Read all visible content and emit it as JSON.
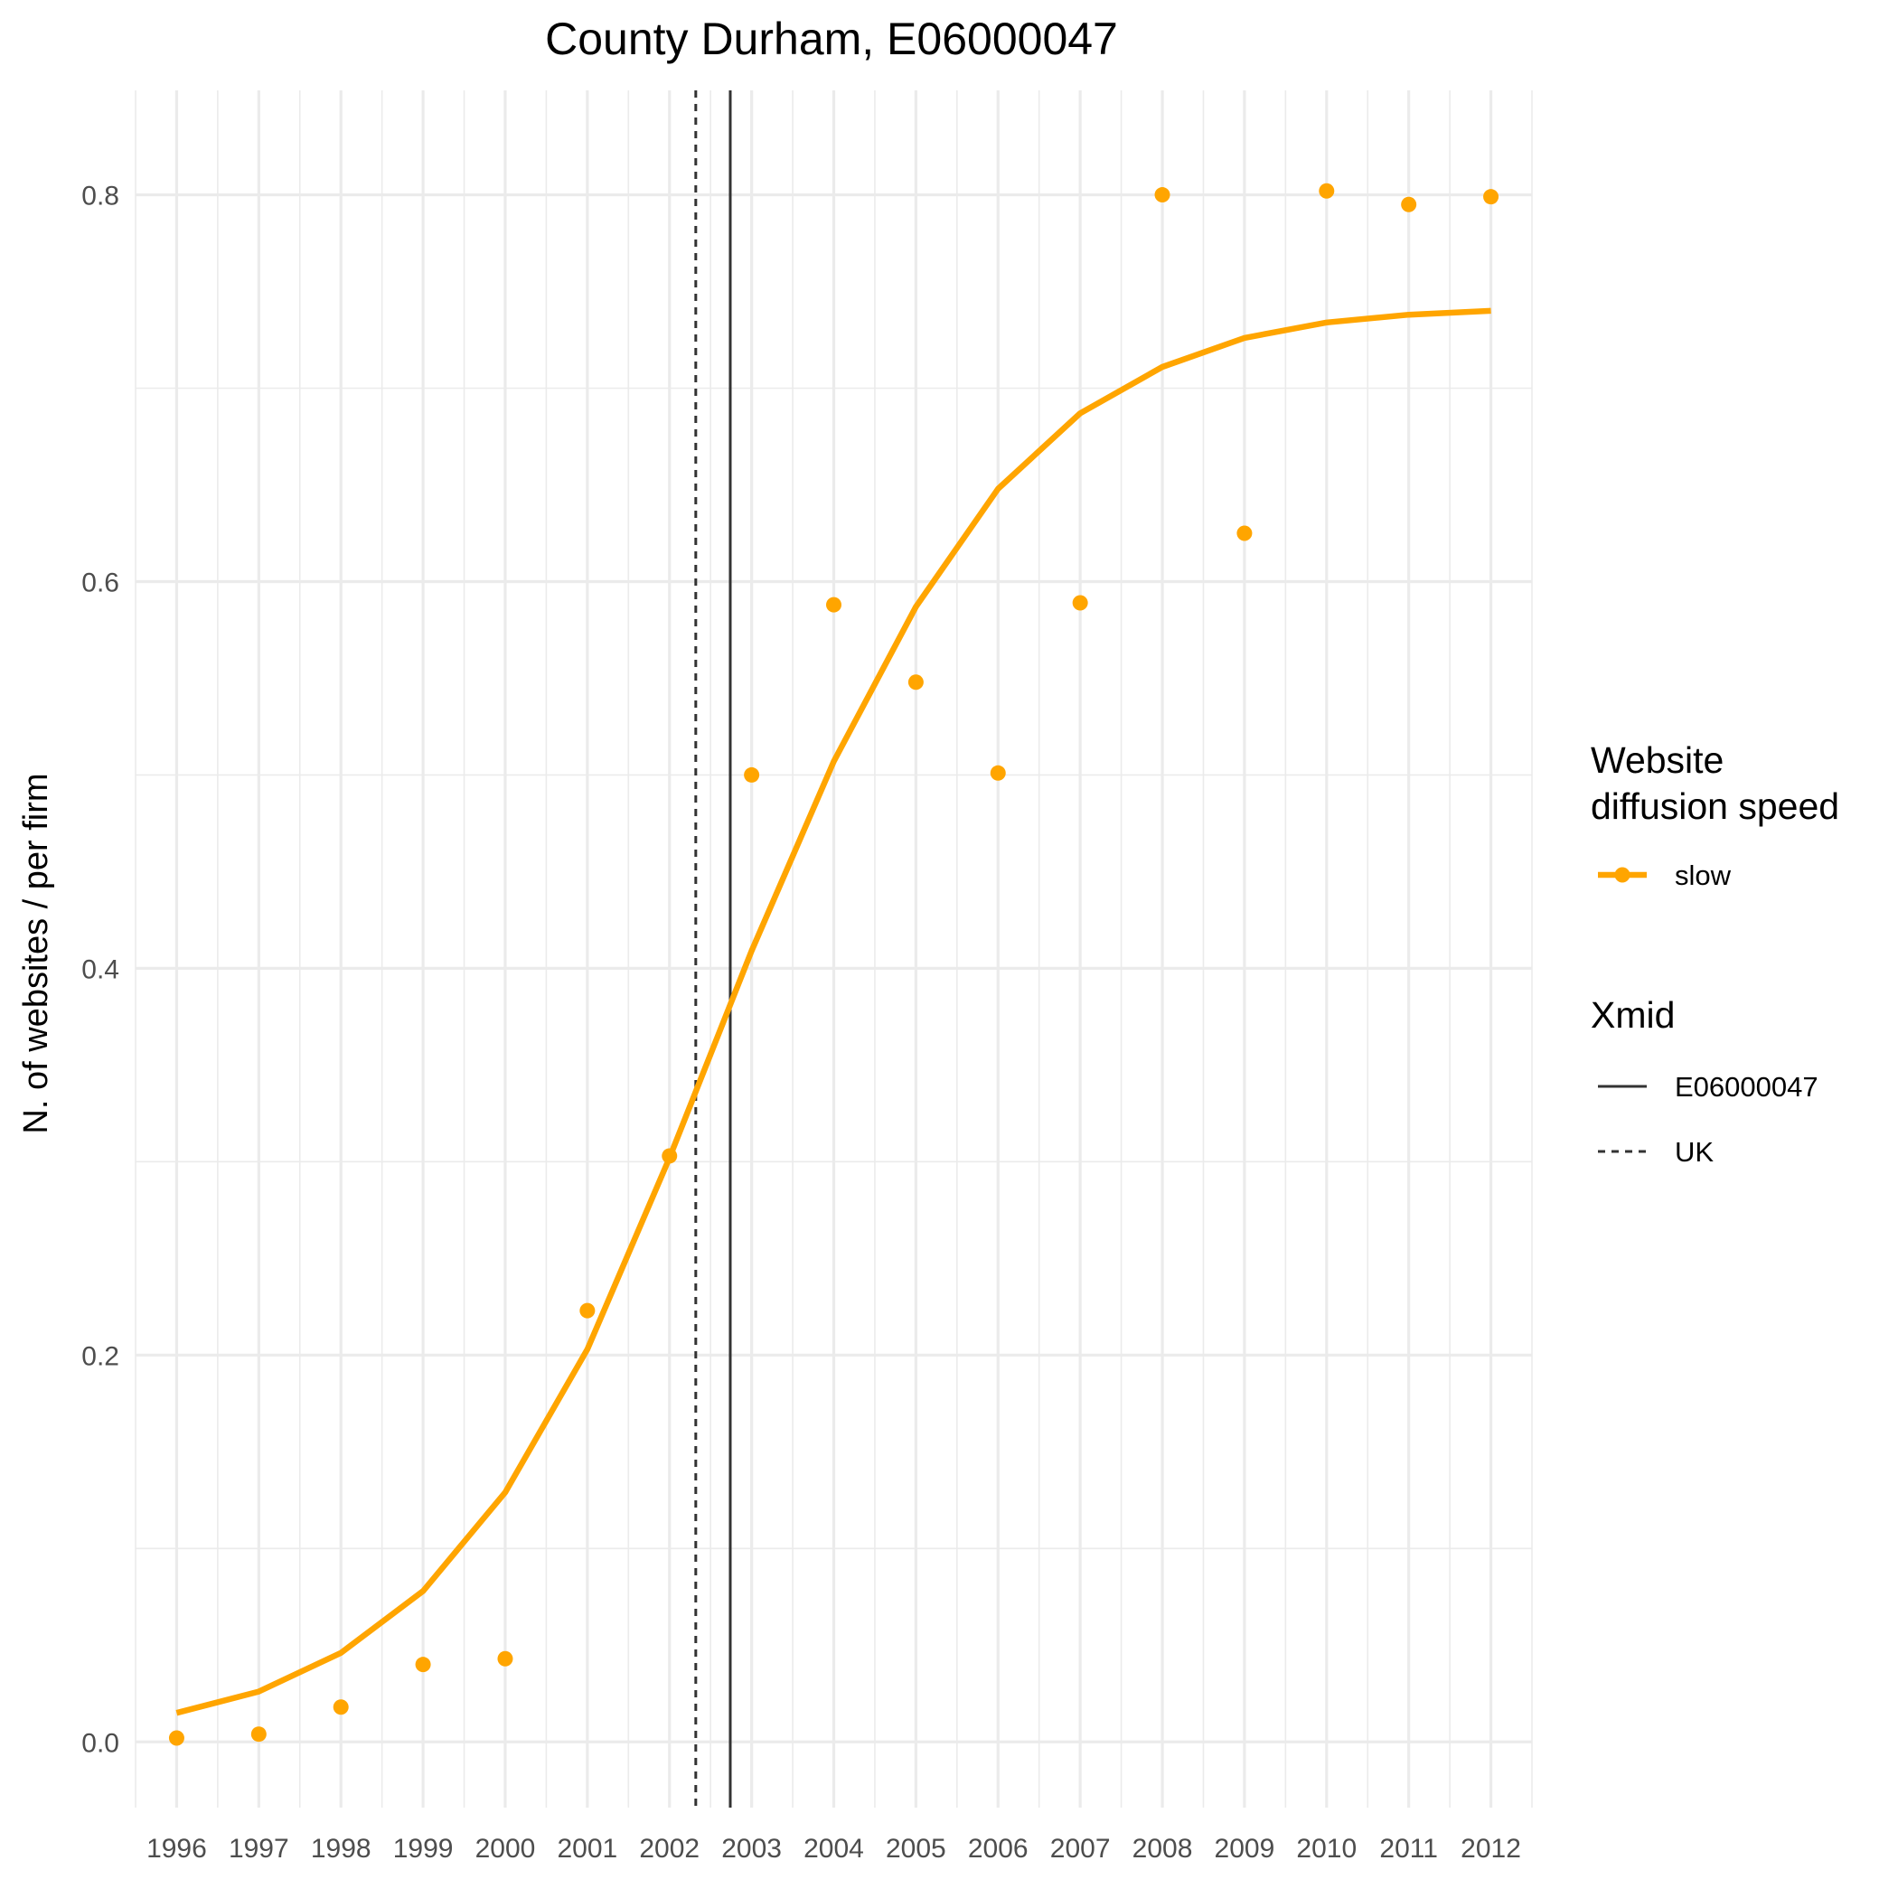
{
  "chart_data": {
    "type": "line",
    "title": "County Durham, E06000047",
    "xlabel": "",
    "ylabel": "N. of websites / per firm",
    "x": [
      1996,
      1997,
      1998,
      1999,
      2000,
      2001,
      2002,
      2003,
      2004,
      2005,
      2006,
      2007,
      2008,
      2009,
      2010,
      2011,
      2012
    ],
    "x_tick_labels": [
      "1996",
      "1997",
      "1998",
      "1999",
      "2000",
      "2001",
      "2002",
      "2003",
      "2004",
      "2005",
      "2006",
      "2007",
      "2008",
      "2009",
      "2010",
      "2011",
      "2012"
    ],
    "y_ticks": [
      0.0,
      0.2,
      0.4,
      0.6,
      0.8
    ],
    "y_tick_labels": [
      "0.0",
      "0.2",
      "0.4",
      "0.6",
      "0.8"
    ],
    "xlim": [
      1995.5,
      2012.5
    ],
    "ylim": [
      -0.034,
      0.854
    ],
    "grid": true,
    "series": [
      {
        "name": "slow",
        "color": "#FFA500",
        "fitted": [
          0.015,
          0.026,
          0.046,
          0.078,
          0.129,
          0.203,
          0.302,
          0.409,
          0.507,
          0.587,
          0.648,
          0.687,
          0.711,
          0.726,
          0.734,
          0.738,
          0.74
        ],
        "observed": [
          0.002,
          0.004,
          0.018,
          0.04,
          0.043,
          0.223,
          0.303,
          0.5,
          0.588,
          0.548,
          0.501,
          0.589,
          0.8,
          0.625,
          0.802,
          0.795,
          0.799
        ]
      }
    ],
    "vlines": [
      {
        "name": "E06000047",
        "x": 2002.74,
        "style": "solid",
        "color": "#333333"
      },
      {
        "name": "UK",
        "x": 2002.32,
        "style": "dashed",
        "color": "#333333"
      }
    ],
    "legend": {
      "placement": "right",
      "groups": [
        {
          "title_lines": [
            "Website",
            "diffusion speed"
          ],
          "entries": [
            {
              "label": "slow",
              "kind": "line-point",
              "color": "#FFA500"
            }
          ]
        },
        {
          "title_lines": [
            "Xmid"
          ],
          "entries": [
            {
              "label": "E06000047",
              "kind": "solid",
              "color": "#333333"
            },
            {
              "label": "UK",
              "kind": "dashed",
              "color": "#333333"
            }
          ]
        }
      ]
    }
  }
}
